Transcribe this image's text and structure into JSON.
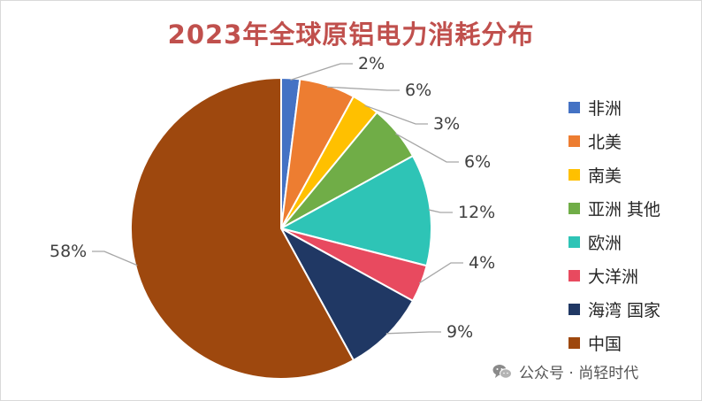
{
  "chart_data": {
    "type": "pie",
    "title": "2023年全球原铝电力消耗分布",
    "legend_position": "right",
    "slices": [
      {
        "name": "非洲",
        "value": 2,
        "label": "2%",
        "color": "#4472c4"
      },
      {
        "name": "北美",
        "value": 6,
        "label": "6%",
        "color": "#ed7d31"
      },
      {
        "name": "南美",
        "value": 3,
        "label": "3%",
        "color": "#ffc000"
      },
      {
        "name": "亚洲 其他",
        "value": 6,
        "label": "6%",
        "color": "#70ad47"
      },
      {
        "name": "欧洲",
        "value": 12,
        "label": "12%",
        "color": "#2ec4b6"
      },
      {
        "name": "大洋洲",
        "value": 4,
        "label": "4%",
        "color": "#e84a5f"
      },
      {
        "name": "海湾 国家",
        "value": 9,
        "label": "9%",
        "color": "#203864"
      },
      {
        "name": "中国",
        "value": 58,
        "label": "58%",
        "color": "#9e480e"
      }
    ]
  },
  "watermark": {
    "text": "公众号 · 尚轻时代",
    "icon": "wechat-icon"
  }
}
